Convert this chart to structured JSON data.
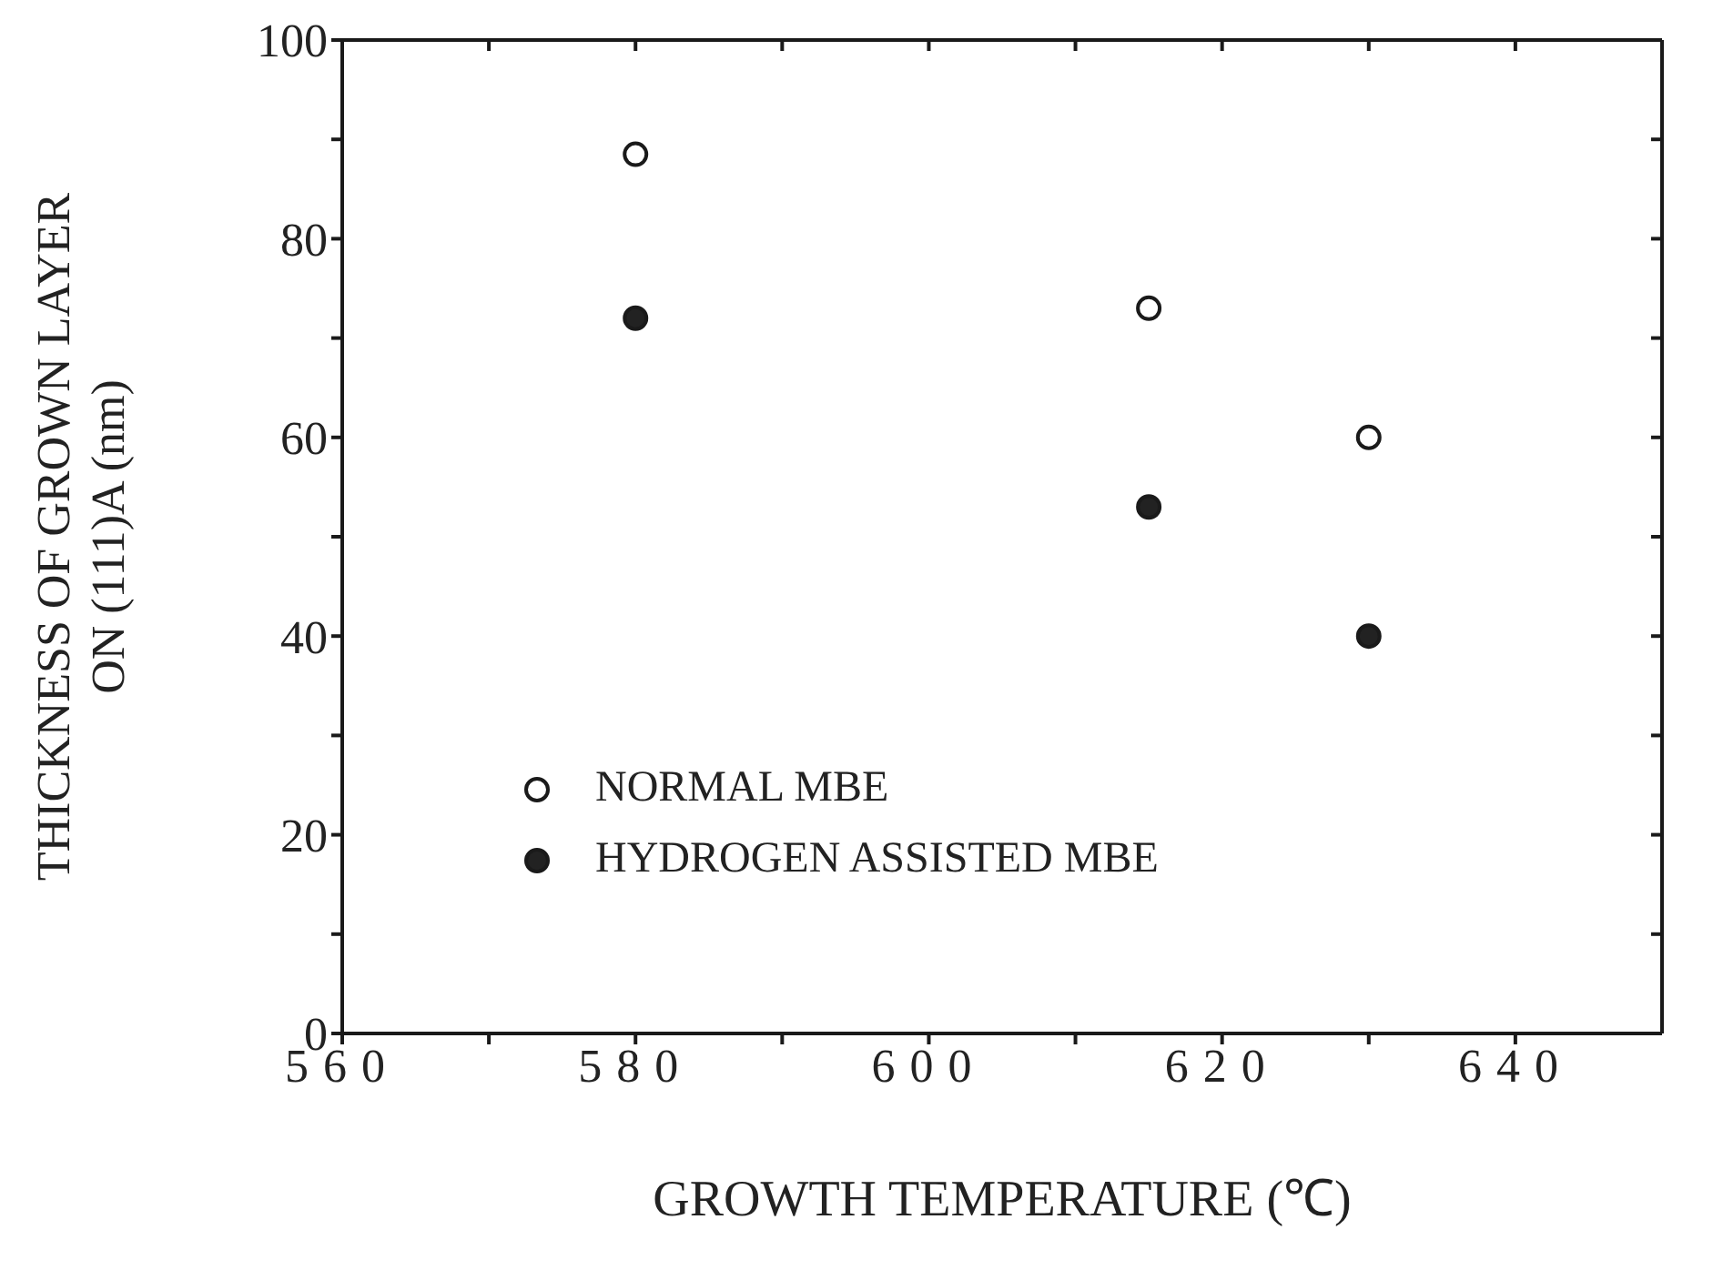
{
  "chart_data": {
    "type": "scatter",
    "xlabel": "GROWTH TEMPERATURE (℃)",
    "ylabel": "THICKNESS OF GROWN LAYER\nON (111)A  (nm)",
    "xlim": [
      560,
      650
    ],
    "xticks": [
      560,
      {
        "value": 570,
        "label": null
      },
      580,
      {
        "value": 590,
        "label": null
      },
      600,
      {
        "value": 610,
        "label": null
      },
      620,
      {
        "value": 630,
        "label": null
      },
      640
    ],
    "ylim": [
      0,
      100
    ],
    "yticks": [
      0,
      {
        "value": 10,
        "label": null
      },
      20,
      {
        "value": 30,
        "label": null
      },
      40,
      {
        "value": 50,
        "label": null
      },
      60,
      {
        "value": 70,
        "label": null
      },
      80,
      {
        "value": 90,
        "label": null
      },
      100
    ],
    "marker": "circle",
    "legend": "bottom left",
    "series": [
      {
        "name": "NORMAL MBE",
        "color": "#ffffff",
        "x": [
          580,
          615,
          630
        ],
        "values": [
          88.5,
          73,
          60
        ]
      },
      {
        "name": "HYDROGEN ASSISTED MBE",
        "color": "#222222",
        "x": [
          580,
          615,
          630
        ],
        "values": [
          72,
          53,
          40
        ]
      }
    ]
  }
}
